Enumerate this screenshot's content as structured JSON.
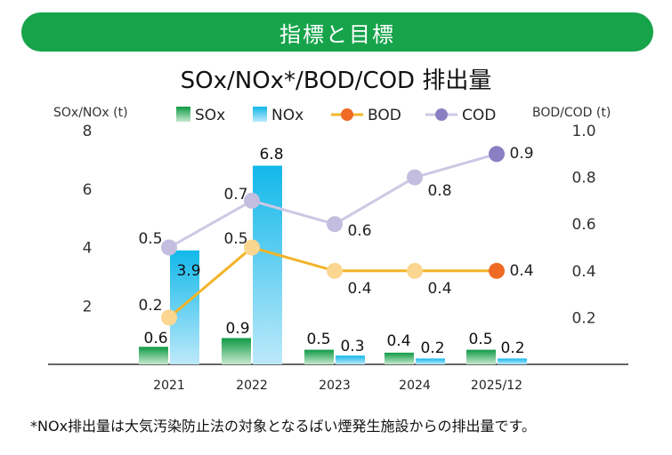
{
  "header": {
    "title": "指標と目標"
  },
  "footnote": "*NOx排出量は大気汚染防止法の対象となるばい煙発生施設からの排出量です。",
  "colors": {
    "header_bg": "#16a34a",
    "sox_top": "#0e9a45",
    "sox_bottom": "#c8e9cf",
    "nox_top": "#12b8ea",
    "nox_bottom": "#bde9fa",
    "bod_line": "#f3b42a",
    "bod_point": "#fbd690",
    "bod_last": "#ef6a24",
    "cod_line": "#cdc8e4",
    "cod_point": "#c3bedf",
    "cod_last": "#8a7fc2"
  },
  "chart_data": {
    "type": "bar",
    "title": "SOx/NOx*/BOD/COD 排出量",
    "categories": [
      "2021",
      "2022",
      "2023",
      "2024",
      "2025/12"
    ],
    "y_left": {
      "label": "SOx/NOx (t)",
      "ylim": [
        0,
        8
      ],
      "ticks": [
        "2",
        "4",
        "6",
        "8"
      ]
    },
    "y_right": {
      "label": "BOD/COD (t)",
      "ylim": [
        0,
        1.0
      ],
      "ticks": [
        "0.2",
        "0.4",
        "0.6",
        "0.8",
        "1.0"
      ]
    },
    "legend": [
      "SOx",
      "NOx",
      "BOD",
      "COD"
    ],
    "legend_position": "top",
    "grid": false,
    "bar_series": [
      {
        "name": "SOx",
        "axis": "left",
        "values": [
          0.6,
          0.9,
          0.5,
          0.4,
          0.5
        ],
        "labels": [
          "0.6",
          "0.9",
          "0.5",
          "0.4",
          "0.5"
        ]
      },
      {
        "name": "NOx",
        "axis": "left",
        "values": [
          3.9,
          6.8,
          0.3,
          0.2,
          0.2
        ],
        "labels": [
          "3.9",
          "6.8",
          "0.3",
          "0.2",
          "0.2"
        ]
      }
    ],
    "line_series": [
      {
        "name": "BOD",
        "axis": "right",
        "values": [
          0.2,
          0.5,
          0.4,
          0.4,
          0.4
        ],
        "labels": [
          "0.2",
          "0.5",
          "0.4",
          "0.4",
          "0.4"
        ]
      },
      {
        "name": "COD",
        "axis": "right",
        "values": [
          0.5,
          0.7,
          0.6,
          0.8,
          0.9
        ],
        "labels": [
          "0.5",
          "0.7",
          "0.6",
          "0.8",
          "0.9"
        ]
      }
    ]
  }
}
